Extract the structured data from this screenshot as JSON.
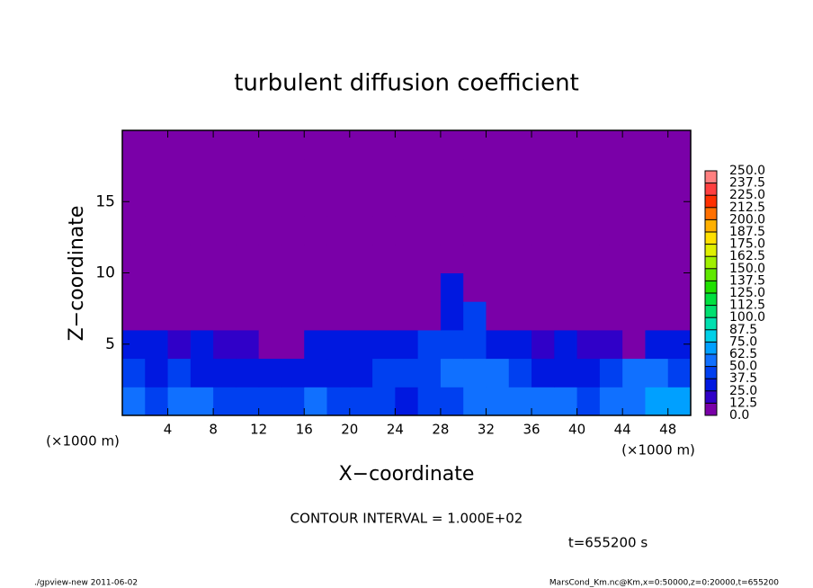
{
  "chart_data": {
    "type": "contourf",
    "title": "turbulent diffusion coefficient",
    "xlabel": "X−coordinate",
    "ylabel": "Z−coordinate",
    "x_unit": "(×1000 m)",
    "y_unit": "(×1000 m)",
    "annotation": "CONTOUR INTERVAL = 1.000E+02",
    "time_label": "t=655200 s",
    "footer_left": "./gpview-new   2011-06-02",
    "footer_right": "MarsCond_Km.nc@Km,x=0:50000,z=0:20000,t=655200",
    "xlim": [
      0,
      50
    ],
    "ylim": [
      0,
      20
    ],
    "xticks": [
      4,
      8,
      12,
      16,
      20,
      24,
      28,
      32,
      36,
      40,
      44,
      48
    ],
    "yticks": [
      5,
      10,
      15
    ],
    "x": [
      1,
      3,
      5,
      7,
      9,
      11,
      13,
      15,
      17,
      19,
      21,
      23,
      25,
      27,
      29,
      31,
      33,
      35,
      37,
      39,
      41,
      43,
      45,
      47,
      49
    ],
    "y": [
      1,
      3,
      5,
      7,
      9,
      11,
      13,
      15,
      17,
      19
    ],
    "z": [
      [
        50,
        45,
        55,
        50,
        45,
        40,
        45,
        40,
        50,
        45,
        40,
        45,
        35,
        40,
        45,
        50,
        55,
        60,
        55,
        50,
        45,
        50,
        60,
        65,
        70
      ],
      [
        40,
        35,
        40,
        35,
        30,
        35,
        30,
        35,
        30,
        35,
        30,
        40,
        45,
        40,
        50,
        55,
        50,
        40,
        35,
        30,
        35,
        45,
        55,
        50,
        45
      ],
      [
        30,
        25,
        20,
        25,
        20,
        15,
        10,
        5,
        30,
        30,
        25,
        30,
        35,
        40,
        45,
        40,
        30,
        25,
        20,
        25,
        20,
        15,
        10,
        35,
        30
      ],
      [
        0,
        0,
        0,
        0,
        0,
        0,
        0,
        0,
        0,
        0,
        0,
        0,
        0,
        0,
        30,
        40,
        0,
        0,
        0,
        0,
        0,
        0,
        0,
        0,
        0
      ],
      [
        0,
        0,
        0,
        0,
        0,
        0,
        0,
        0,
        0,
        0,
        0,
        0,
        0,
        0,
        25,
        0,
        0,
        0,
        0,
        0,
        0,
        0,
        0,
        0,
        0
      ],
      [
        0,
        0,
        0,
        0,
        0,
        0,
        0,
        0,
        0,
        0,
        0,
        0,
        0,
        0,
        0,
        0,
        0,
        0,
        0,
        0,
        0,
        0,
        0,
        0,
        0
      ],
      [
        0,
        0,
        0,
        0,
        0,
        0,
        0,
        0,
        0,
        0,
        0,
        0,
        0,
        0,
        0,
        0,
        0,
        0,
        0,
        0,
        0,
        0,
        0,
        0,
        0
      ],
      [
        0,
        0,
        0,
        0,
        0,
        0,
        0,
        0,
        0,
        0,
        0,
        0,
        0,
        0,
        0,
        0,
        0,
        0,
        0,
        0,
        0,
        0,
        0,
        0,
        0
      ],
      [
        0,
        0,
        0,
        0,
        0,
        0,
        0,
        0,
        0,
        0,
        0,
        0,
        0,
        0,
        0,
        0,
        0,
        0,
        0,
        0,
        0,
        0,
        0,
        0,
        0
      ],
      [
        0,
        0,
        0,
        0,
        0,
        0,
        0,
        0,
        0,
        0,
        0,
        0,
        0,
        0,
        0,
        0,
        0,
        0,
        0,
        0,
        0,
        0,
        0,
        0,
        0
      ]
    ],
    "levels": [
      {
        "value": 0,
        "label": "0.0"
      },
      {
        "value": 12.5,
        "label": "12.5"
      },
      {
        "value": 25,
        "label": "25.0"
      },
      {
        "value": 37.5,
        "label": "37.5"
      },
      {
        "value": 50,
        "label": "50.0"
      },
      {
        "value": 62.5,
        "label": "62.5"
      },
      {
        "value": 75,
        "label": "75.0"
      },
      {
        "value": 87.5,
        "label": "87.5"
      },
      {
        "value": 100,
        "label": "100.0"
      },
      {
        "value": 112.5,
        "label": "112.5"
      },
      {
        "value": 125,
        "label": "125.0"
      },
      {
        "value": 137.5,
        "label": "137.5"
      },
      {
        "value": 150,
        "label": "150.0"
      },
      {
        "value": 162.5,
        "label": "162.5"
      },
      {
        "value": 175,
        "label": "175.0"
      },
      {
        "value": 187.5,
        "label": "187.5"
      },
      {
        "value": 200,
        "label": "200.0"
      },
      {
        "value": 212.5,
        "label": "212.5"
      },
      {
        "value": 225,
        "label": "225.0"
      },
      {
        "value": 237.5,
        "label": "237.5"
      },
      {
        "value": 250,
        "label": "250.0"
      }
    ],
    "colors": [
      "#7a00a8",
      "#3000c8",
      "#0018e0",
      "#0040f0",
      "#1070ff",
      "#00a0ff",
      "#00d0e8",
      "#00e0b0",
      "#00e070",
      "#00e040",
      "#20e000",
      "#60e800",
      "#a0f000",
      "#e0f000",
      "#ffe000",
      "#ffb000",
      "#ff7000",
      "#ff3000",
      "#ff4040",
      "#ff8080"
    ]
  }
}
